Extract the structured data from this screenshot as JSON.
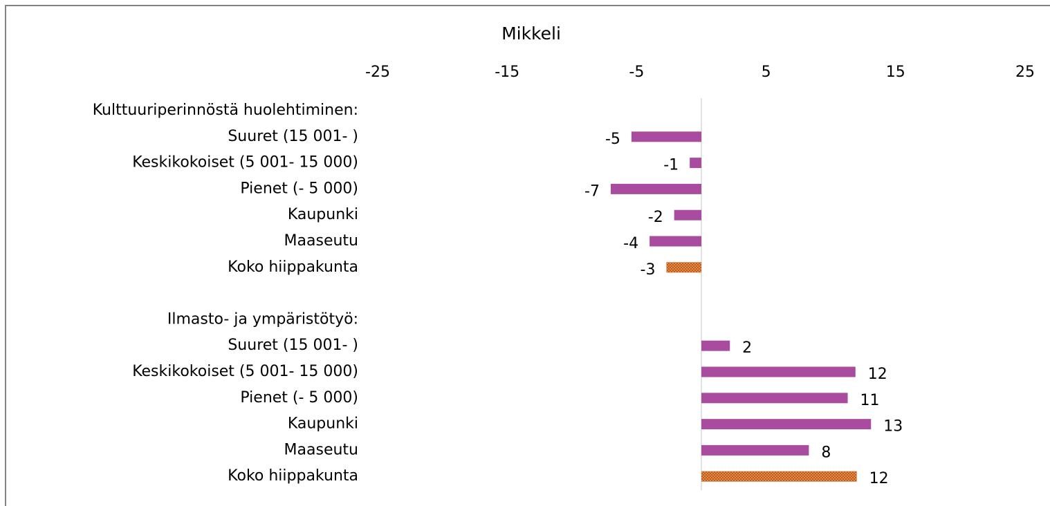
{
  "chart_data": {
    "type": "hbar",
    "title": "Mikkeli",
    "categories": [
      "Kulttuuriperinnöstä huolehtiminen:",
      "Suuret (15 001- )",
      "Keskikokoiset (5 001- 15 000)",
      "Pienet (- 5 000)",
      "Kaupunki",
      "Maaseutu",
      "Koko hiippakunta",
      null,
      "Ilmasto- ja ympäristötyö:",
      "Suuret (15 001- )",
      "Keskikokoiset (5 001- 15 000)",
      "Pienet (- 5 000)",
      "Kaupunki",
      "Maaseutu",
      "Koko hiippakunta"
    ],
    "values": [
      null,
      -5.4,
      -0.9,
      -7.0,
      -2.1,
      -4.0,
      -2.7,
      null,
      null,
      2.2,
      11.9,
      11.3,
      13.1,
      8.3,
      12.0
    ],
    "value_labels": [
      null,
      "-5",
      "-1",
      "-7",
      "-2",
      "-4",
      "-3",
      null,
      null,
      "2",
      "12",
      "11",
      "13",
      "8",
      "12"
    ],
    "colors": [
      null,
      "#a94ca0",
      "#a94ca0",
      "#a94ca0",
      "#a94ca0",
      "#a94ca0",
      "#c55a11",
      null,
      null,
      "#a94ca0",
      "#a94ca0",
      "#a94ca0",
      "#a94ca0",
      "#a94ca0",
      "#c55a11"
    ],
    "dotted": [
      null,
      false,
      false,
      false,
      false,
      false,
      true,
      null,
      null,
      false,
      false,
      false,
      false,
      false,
      true
    ],
    "xlim": [
      -25,
      25
    ],
    "xticks": [
      -25,
      -15,
      -5,
      5,
      15,
      25
    ]
  }
}
